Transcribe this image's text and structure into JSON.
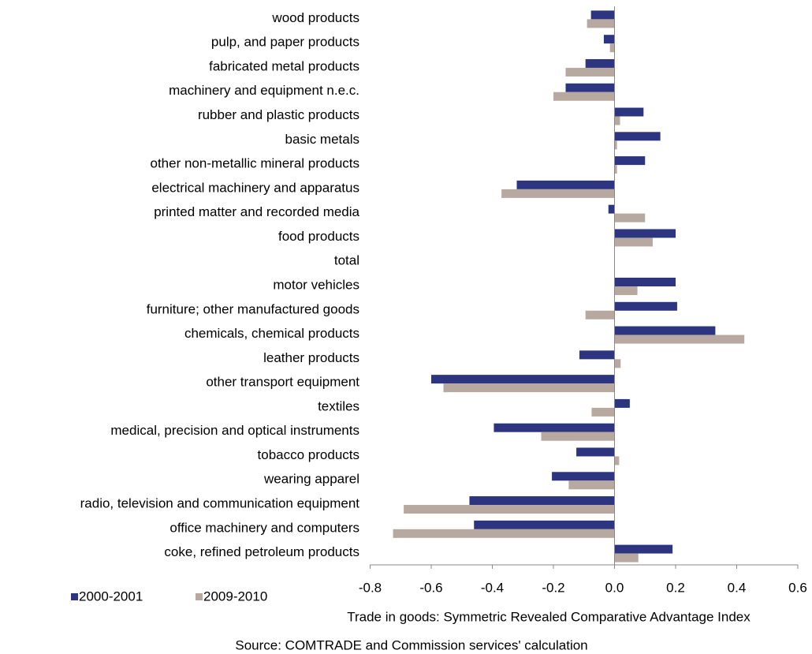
{
  "chart_data": {
    "type": "hbar",
    "xlabel": "Trade in goods: Symmetric Revealed Comparative Advantage Index",
    "source": "Source: COMTRADE and Commission services' calculation",
    "categories": [
      "wood products",
      "pulp, and paper products",
      "fabricated metal products",
      "machinery and equipment n.e.c.",
      "rubber and plastic products",
      "basic metals",
      "other non-metallic mineral products",
      "electrical machinery and apparatus",
      "printed matter and recorded media",
      "food products",
      "total",
      "motor vehicles",
      "furniture; other manufactured goods",
      "chemicals, chemical products",
      "leather products",
      "other transport equipment",
      "textiles",
      "medical, precision and optical instruments",
      "tobacco products",
      "wearing apparel",
      "radio, television and communication equipment",
      "office machinery and computers",
      "coke, refined petroleum products"
    ],
    "series": [
      {
        "name": "2000-2001",
        "color": "#2e3580",
        "values": [
          -0.077,
          -0.035,
          -0.095,
          -0.16,
          0.095,
          0.15,
          0.1,
          -0.32,
          -0.02,
          0.2,
          0,
          0.2,
          0.205,
          0.33,
          -0.115,
          -0.6,
          0.05,
          -0.395,
          -0.125,
          -0.205,
          -0.475,
          -0.46,
          0.19
        ]
      },
      {
        "name": "2009-2010",
        "color": "#b7a8a0",
        "values": [
          -0.09,
          -0.015,
          -0.16,
          -0.2,
          0.018,
          0.008,
          0.008,
          -0.37,
          0.1,
          0.125,
          0,
          0.075,
          -0.095,
          0.425,
          0.02,
          -0.56,
          -0.075,
          -0.24,
          0.015,
          -0.15,
          -0.69,
          -0.725,
          0.078
        ]
      }
    ],
    "xlim": [
      -0.8,
      0.6
    ],
    "xticks": [
      -0.8,
      -0.6,
      -0.4,
      -0.2,
      {
        "value": 0,
        "label": "0.0"
      },
      0.2,
      0.4,
      0.6
    ],
    "legend": "bottom-left"
  }
}
